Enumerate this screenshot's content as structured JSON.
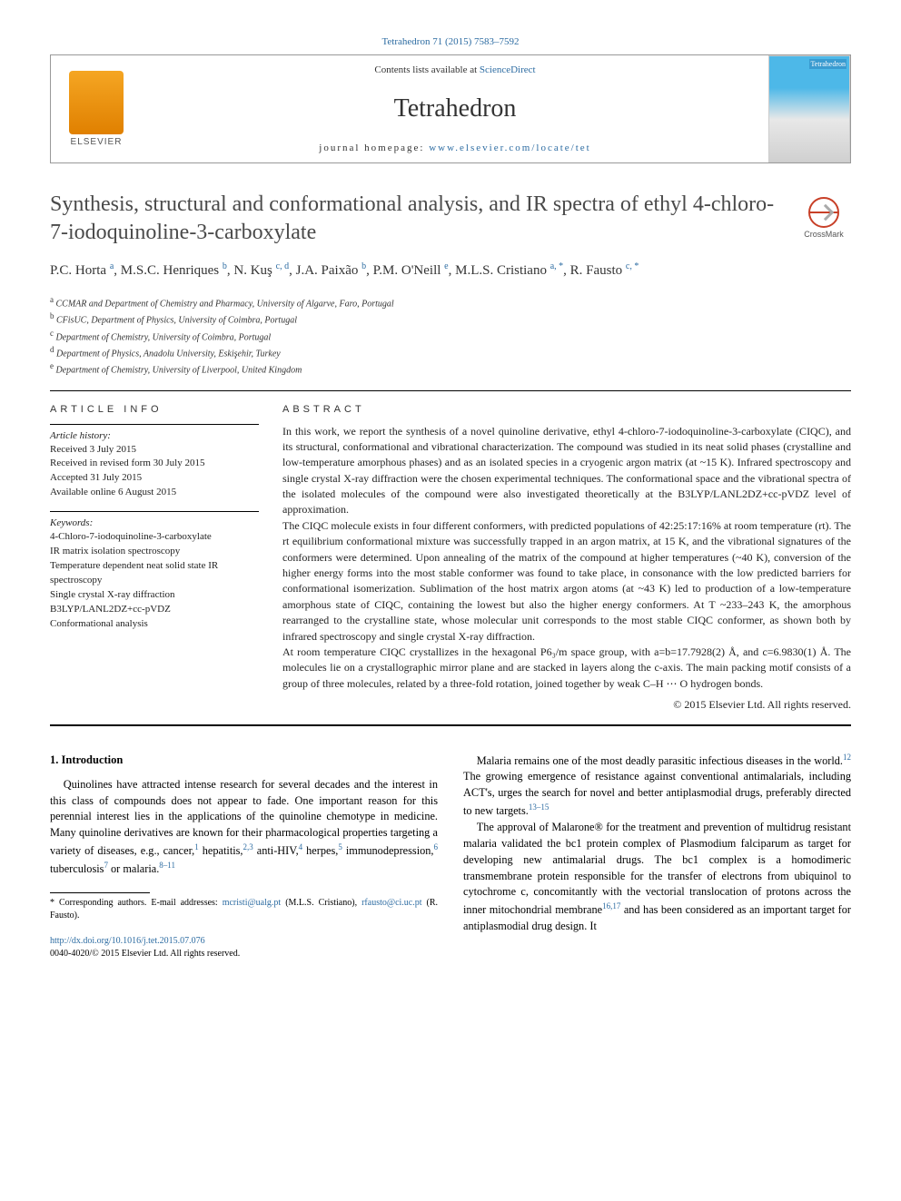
{
  "citation": "Tetrahedron 71 (2015) 7583–7592",
  "header": {
    "contents_prefix": "Contents lists available at ",
    "contents_link": "ScienceDirect",
    "journal": "Tetrahedron",
    "homepage_prefix": "journal homepage: ",
    "homepage_link": "www.elsevier.com/locate/tet",
    "elsevier_label": "ELSEVIER",
    "cover_label": "Tetrahedron",
    "crossmark": "CrossMark"
  },
  "title": "Synthesis, structural and conformational analysis, and IR spectra of ethyl 4-chloro-7-iodoquinoline-3-carboxylate",
  "authors_line1": "P.C. Horta ",
  "authors_sup1": "a",
  "authors_line2": ", M.S.C. Henriques ",
  "authors_sup2": "b",
  "authors_line3": ", N. Kuş ",
  "authors_sup3": "c, d",
  "authors_line4": ", J.A. Paixão ",
  "authors_sup4": "b",
  "authors_line5": ", P.M. O'Neill ",
  "authors_sup5": "e",
  "authors_line6": ", M.L.S. Cristiano ",
  "authors_sup6": "a, *",
  "authors_line7": ", R. Fausto ",
  "authors_sup7": "c, *",
  "affiliations": {
    "a": "CCMAR and Department of Chemistry and Pharmacy, University of Algarve, Faro, Portugal",
    "b": "CFisUC, Department of Physics, University of Coimbra, Portugal",
    "c": "Department of Chemistry, University of Coimbra, Portugal",
    "d": "Department of Physics, Anadolu University, Eskişehir, Turkey",
    "e": "Department of Chemistry, University of Liverpool, United Kingdom"
  },
  "info": {
    "heading": "ARTICLE INFO",
    "history_label": "Article history:",
    "history": [
      "Received 3 July 2015",
      "Received in revised form 30 July 2015",
      "Accepted 31 July 2015",
      "Available online 6 August 2015"
    ],
    "keywords_label": "Keywords:",
    "keywords": [
      "4-Chloro-7-iodoquinoline-3-carboxylate",
      "IR matrix isolation spectroscopy",
      "Temperature dependent neat solid state IR spectroscopy",
      "Single crystal X-ray diffraction",
      "B3LYP/LANL2DZ+cc-pVDZ",
      "Conformational analysis"
    ]
  },
  "abstract": {
    "heading": "ABSTRACT",
    "p1": "In this work, we report the synthesis of a novel quinoline derivative, ethyl 4-chloro-7-iodoquinoline-3-carboxylate (CIQC), and its structural, conformational and vibrational characterization. The compound was studied in its neat solid phases (crystalline and low-temperature amorphous phases) and as an isolated species in a cryogenic argon matrix (at ~15 K). Infrared spectroscopy and single crystal X-ray diffraction were the chosen experimental techniques. The conformational space and the vibrational spectra of the isolated molecules of the compound were also investigated theoretically at the B3LYP/LANL2DZ+cc-pVDZ level of approximation.",
    "p2": "The CIQC molecule exists in four different conformers, with predicted populations of 42:25:17:16% at room temperature (rt). The rt equilibrium conformational mixture was successfully trapped in an argon matrix, at 15 K, and the vibrational signatures of the conformers were determined. Upon annealing of the matrix of the compound at higher temperatures (~40 K), conversion of the higher energy forms into the most stable conformer was found to take place, in consonance with the low predicted barriers for conformational isomerization. Sublimation of the host matrix argon atoms (at ~43 K) led to production of a low-temperature amorphous state of CIQC, containing the lowest but also the higher energy conformers. At T ~233–243 K, the amorphous rearranged to the crystalline state, whose molecular unit corresponds to the most stable CIQC conformer, as shown both by infrared spectroscopy and single crystal X-ray diffraction.",
    "p3": "At room temperature CIQC crystallizes in the hexagonal P6₃/m space group, with a=b=17.7928(2) Å, and c=6.9830(1) Å. The molecules lie on a crystallographic mirror plane and are stacked in layers along the c-axis. The main packing motif consists of a group of three molecules, related by a three-fold rotation, joined together by weak C–H ⋯ O hydrogen bonds.",
    "copyright": "© 2015 Elsevier Ltd. All rights reserved."
  },
  "body": {
    "section_heading": "1. Introduction",
    "col1_p1_a": "Quinolines have attracted intense research for several decades and the interest in this class of compounds does not appear to fade. One important reason for this perennial interest lies in the applications of the quinoline chemotype in medicine. Many quinoline derivatives are known for their pharmacological properties targeting a variety of diseases, e.g., cancer,",
    "col1_r1": "1",
    "col1_p1_b": " hepatitis,",
    "col1_r2": "2,3",
    "col1_p1_c": " anti-HIV,",
    "col1_r3": "4",
    "col1_p1_d": " herpes,",
    "col1_r4": "5",
    "col1_p1_e": " immunodepression,",
    "col1_r5": "6",
    "col1_p1_f": " tuberculosis",
    "col1_r6": "7",
    "col1_p1_g": " or malaria.",
    "col1_r7": "8–11",
    "col2_p1_a": "Malaria remains one of the most deadly parasitic infectious diseases in the world.",
    "col2_r1": "12",
    "col2_p1_b": " The growing emergence of resistance against conventional antimalarials, including ACT's, urges the search for novel and better antiplasmodial drugs, preferably directed to new targets.",
    "col2_r2": "13–15",
    "col2_p2_a": "The approval of Malarone® for the treatment and prevention of multidrug resistant malaria validated the bc1 protein complex of Plasmodium falciparum as target for developing new antimalarial drugs. The bc1 complex is a homodimeric transmembrane protein responsible for the transfer of electrons from ubiquinol to cytochrome c, concomitantly with the vectorial translocation of protons across the inner mitochondrial membrane",
    "col2_r3": "16,17",
    "col2_p2_b": " and has been considered as an important target for antiplasmodial drug design. It"
  },
  "footnote": {
    "text_a": "* Corresponding authors. E-mail addresses: ",
    "email1": "mcristi@ualg.pt",
    "text_b": " (M.L.S. Cristiano), ",
    "email2": "rfausto@ci.uc.pt",
    "text_c": " (R. Fausto)."
  },
  "doi": {
    "link": "http://dx.doi.org/10.1016/j.tet.2015.07.076",
    "issn_line": "0040-4020/© 2015 Elsevier Ltd. All rights reserved."
  },
  "colors": {
    "link": "#2d6ca2",
    "text": "#222222",
    "title": "#4a4a4a",
    "elsevier_orange": "#e08000",
    "cover_blue": "#4db8e8",
    "crossmark_red": "#c84028"
  },
  "typography": {
    "title_fontsize": 24,
    "journal_fontsize": 28,
    "body_fontsize": 12.3,
    "abstract_fontsize": 12,
    "info_fontsize": 11,
    "affil_fontsize": 10,
    "footnote_fontsize": 10
  }
}
